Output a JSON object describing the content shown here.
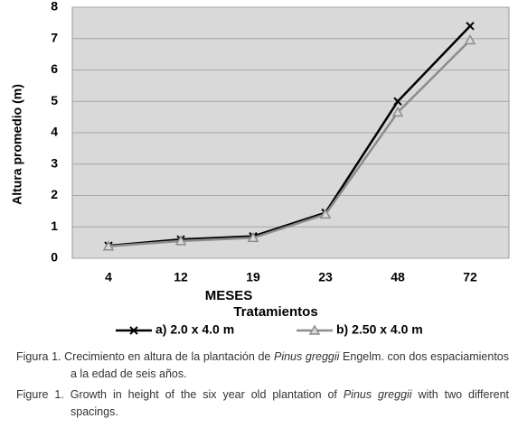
{
  "chart_data": {
    "type": "line",
    "y_label": "Altura promedio (m)",
    "x_label": "MESES",
    "legend_title": "Tratamientos",
    "categories": [
      "4",
      "12",
      "19",
      "23",
      "48",
      "72"
    ],
    "series": [
      {
        "name": "a) 2.0 x 4.0 m",
        "color": "#000000",
        "marker": "x",
        "values": [
          0.4,
          0.6,
          0.7,
          1.45,
          5.0,
          7.4
        ]
      },
      {
        "name": "b) 2.50 x 4.0 m",
        "color": "#8c8c8c",
        "marker": "triangle",
        "values": [
          0.38,
          0.55,
          0.65,
          1.4,
          4.65,
          6.95
        ]
      }
    ],
    "ylim": [
      0,
      8
    ],
    "yticks": [
      0,
      1,
      2,
      3,
      4,
      5,
      6,
      7,
      8
    ],
    "grid": true
  },
  "captions": [
    [
      "Figura 1. Crecimiento en altura de la plantación de ",
      "Pinus greggii",
      " Engelm. con dos espaciamientos a la edad de seis años."
    ],
    [
      "Figure 1. Growth in height of the six year old plantation of ",
      "Pinus greggii",
      " with two different spacings."
    ]
  ]
}
